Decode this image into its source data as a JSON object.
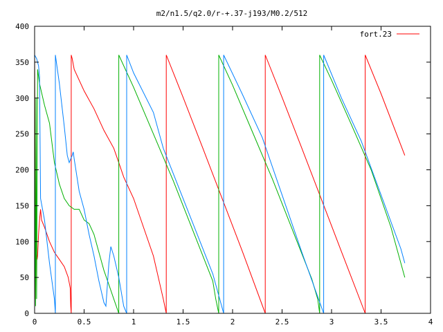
{
  "chart_data": {
    "type": "line",
    "title": "m2/n1.5/q2.0/r-+.37-j193/M0.2/512",
    "xlabel": "",
    "ylabel": "",
    "xlim": [
      0,
      4
    ],
    "ylim": [
      0,
      400
    ],
    "xticks": [
      0,
      0.5,
      1,
      1.5,
      2,
      2.5,
      3,
      3.5,
      4
    ],
    "xtick_labels": [
      "0",
      "0.5",
      "1",
      "1.5",
      "2",
      "2.5",
      "3",
      "3.5",
      "4"
    ],
    "yticks": [
      0,
      50,
      100,
      150,
      200,
      250,
      300,
      350,
      400
    ],
    "ytick_labels": [
      "0",
      "50",
      "100",
      "150",
      "200",
      "250",
      "300",
      "350",
      "400"
    ],
    "grid": false,
    "legend_position": "top-right",
    "series": [
      {
        "name": "fort.23",
        "color": "#ff0000",
        "points": [
          [
            0.0,
            360
          ],
          [
            0.005,
            200
          ],
          [
            0.01,
            20
          ],
          [
            0.015,
            110
          ],
          [
            0.02,
            85
          ],
          [
            0.025,
            75
          ],
          [
            0.03,
            80
          ],
          [
            0.04,
            110
          ],
          [
            0.05,
            130
          ],
          [
            0.06,
            145
          ],
          [
            0.07,
            130
          ],
          [
            0.1,
            120
          ],
          [
            0.15,
            100
          ],
          [
            0.2,
            85
          ],
          [
            0.25,
            75
          ],
          [
            0.3,
            65
          ],
          [
            0.34,
            50
          ],
          [
            0.36,
            35
          ],
          [
            0.365,
            10
          ],
          [
            0.37,
            0
          ],
          [
            0.37,
            360
          ],
          [
            0.38,
            355
          ],
          [
            0.4,
            340
          ],
          [
            0.5,
            310
          ],
          [
            0.6,
            285
          ],
          [
            0.7,
            255
          ],
          [
            0.8,
            230
          ],
          [
            0.85,
            210
          ],
          [
            0.9,
            190
          ],
          [
            1.0,
            160
          ],
          [
            1.1,
            120
          ],
          [
            1.2,
            80
          ],
          [
            1.3,
            20
          ],
          [
            1.33,
            0
          ],
          [
            1.33,
            360
          ],
          [
            1.5,
            301
          ],
          [
            1.7,
            230
          ],
          [
            1.9,
            158
          ],
          [
            2.1,
            86
          ],
          [
            2.33,
            0
          ],
          [
            2.33,
            360
          ],
          [
            2.5,
            301
          ],
          [
            2.7,
            230
          ],
          [
            2.9,
            158
          ],
          [
            3.1,
            86
          ],
          [
            3.34,
            0
          ],
          [
            3.34,
            360
          ],
          [
            3.5,
            306
          ],
          [
            3.74,
            220
          ]
        ]
      },
      {
        "color": "#00b000",
        "points": [
          [
            0.0,
            360
          ],
          [
            0.005,
            100
          ],
          [
            0.01,
            10
          ],
          [
            0.015,
            300
          ],
          [
            0.02,
            20
          ],
          [
            0.03,
            340
          ],
          [
            0.05,
            320
          ],
          [
            0.1,
            290
          ],
          [
            0.15,
            265
          ],
          [
            0.2,
            210
          ],
          [
            0.25,
            180
          ],
          [
            0.3,
            160
          ],
          [
            0.35,
            150
          ],
          [
            0.4,
            145
          ],
          [
            0.45,
            145
          ],
          [
            0.5,
            130
          ],
          [
            0.55,
            125
          ],
          [
            0.6,
            110
          ],
          [
            0.65,
            85
          ],
          [
            0.7,
            60
          ],
          [
            0.75,
            40
          ],
          [
            0.8,
            20
          ],
          [
            0.85,
            0
          ],
          [
            0.85,
            360
          ],
          [
            1.0,
            315
          ],
          [
            1.2,
            250
          ],
          [
            1.4,
            185
          ],
          [
            1.6,
            115
          ],
          [
            1.8,
            45
          ],
          [
            1.83,
            20
          ],
          [
            1.86,
            0
          ],
          [
            1.86,
            360
          ],
          [
            2.0,
            318
          ],
          [
            2.2,
            253
          ],
          [
            2.4,
            188
          ],
          [
            2.6,
            118
          ],
          [
            2.8,
            48
          ],
          [
            2.86,
            20
          ],
          [
            2.88,
            0
          ],
          [
            2.88,
            360
          ],
          [
            3.0,
            325
          ],
          [
            3.2,
            263
          ],
          [
            3.4,
            200
          ],
          [
            3.6,
            120
          ],
          [
            3.74,
            50
          ]
        ]
      },
      {
        "color": "#0080ff",
        "points": [
          [
            0.0,
            360
          ],
          [
            0.02,
            355
          ],
          [
            0.04,
            345
          ],
          [
            0.05,
            330
          ],
          [
            0.06,
            160
          ],
          [
            0.1,
            130
          ],
          [
            0.15,
            70
          ],
          [
            0.2,
            20
          ],
          [
            0.21,
            0
          ],
          [
            0.21,
            360
          ],
          [
            0.25,
            320
          ],
          [
            0.3,
            260
          ],
          [
            0.33,
            220
          ],
          [
            0.35,
            210
          ],
          [
            0.38,
            220
          ],
          [
            0.39,
            225
          ],
          [
            0.4,
            215
          ],
          [
            0.45,
            170
          ],
          [
            0.5,
            145
          ],
          [
            0.55,
            110
          ],
          [
            0.6,
            80
          ],
          [
            0.65,
            45
          ],
          [
            0.7,
            15
          ],
          [
            0.72,
            10
          ],
          [
            0.75,
            70
          ],
          [
            0.77,
            93
          ],
          [
            0.8,
            80
          ],
          [
            0.85,
            50
          ],
          [
            0.9,
            10
          ],
          [
            0.93,
            0
          ],
          [
            0.93,
            360
          ],
          [
            1.0,
            335
          ],
          [
            1.2,
            280
          ],
          [
            1.3,
            230
          ],
          [
            1.4,
            195
          ],
          [
            1.6,
            125
          ],
          [
            1.8,
            55
          ],
          [
            1.91,
            0
          ],
          [
            1.91,
            360
          ],
          [
            2.1,
            305
          ],
          [
            2.3,
            245
          ],
          [
            2.5,
            165
          ],
          [
            2.7,
            85
          ],
          [
            2.92,
            0
          ],
          [
            2.92,
            360
          ],
          [
            3.1,
            300
          ],
          [
            3.3,
            240
          ],
          [
            3.5,
            165
          ],
          [
            3.7,
            90
          ],
          [
            3.74,
            70
          ]
        ]
      }
    ]
  }
}
